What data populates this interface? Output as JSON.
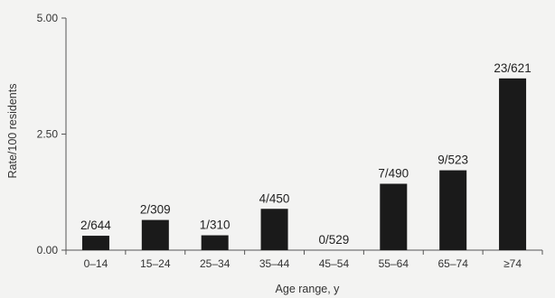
{
  "chart_data": {
    "type": "bar",
    "title": "",
    "xlabel": "Age range, y",
    "ylabel": "Rate/100 residents",
    "ylim": [
      0,
      5
    ],
    "yticks": [
      "0.00",
      "2.50",
      "5.00"
    ],
    "ytick_values": [
      0,
      2.5,
      5
    ],
    "grid": false,
    "categories": [
      "0–14",
      "15–24",
      "25–34",
      "35–44",
      "45–54",
      "55–64",
      "65–74",
      "≥74"
    ],
    "values": [
      0.31,
      0.65,
      0.32,
      0.89,
      0.0,
      1.43,
      1.72,
      3.7
    ],
    "data_labels": [
      "2/644",
      "2/309",
      "1/310",
      "4/450",
      "0/529",
      "7/490",
      "9/523",
      "23/621"
    ],
    "bar_color": "#1a1a1a"
  }
}
